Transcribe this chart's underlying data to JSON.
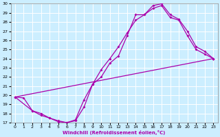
{
  "xlabel": "Windchill (Refroidissement éolien,°C)",
  "xlim": [
    -0.5,
    23.5
  ],
  "ylim": [
    17,
    30
  ],
  "xticks": [
    0,
    1,
    2,
    3,
    4,
    5,
    6,
    7,
    8,
    9,
    10,
    11,
    12,
    13,
    14,
    15,
    16,
    17,
    18,
    19,
    20,
    21,
    22,
    23
  ],
  "yticks": [
    17,
    18,
    19,
    20,
    21,
    22,
    23,
    24,
    25,
    26,
    27,
    28,
    29,
    30
  ],
  "bg_color": "#cceeff",
  "line_color": "#aa00aa",
  "grid_color": "#ffffff",
  "line1_x": [
    0,
    1,
    2,
    3,
    4,
    5,
    6,
    7,
    8,
    9,
    10,
    11,
    12,
    13,
    14,
    15,
    16,
    17,
    18,
    19,
    20,
    21,
    22,
    23
  ],
  "line1_y": [
    19.8,
    19.7,
    18.3,
    17.8,
    17.5,
    17.1,
    17.0,
    17.2,
    18.7,
    21.2,
    22.0,
    23.5,
    24.3,
    26.5,
    28.8,
    28.8,
    29.8,
    30.0,
    28.8,
    28.3,
    27.0,
    25.3,
    24.8,
    24.0
  ],
  "line2_x": [
    0,
    2,
    3,
    4,
    5,
    6,
    7,
    8,
    9,
    10,
    11,
    12,
    13,
    14,
    15,
    16,
    17,
    18,
    19,
    20,
    21,
    22,
    23
  ],
  "line2_y": [
    19.8,
    18.3,
    18.0,
    17.5,
    17.2,
    17.0,
    17.3,
    19.5,
    21.2,
    22.8,
    24.0,
    25.3,
    26.8,
    28.2,
    28.8,
    29.5,
    29.8,
    28.5,
    28.2,
    26.5,
    25.0,
    24.5,
    24.0
  ],
  "line3_x": [
    0,
    23
  ],
  "line3_y": [
    19.8,
    24.0
  ]
}
